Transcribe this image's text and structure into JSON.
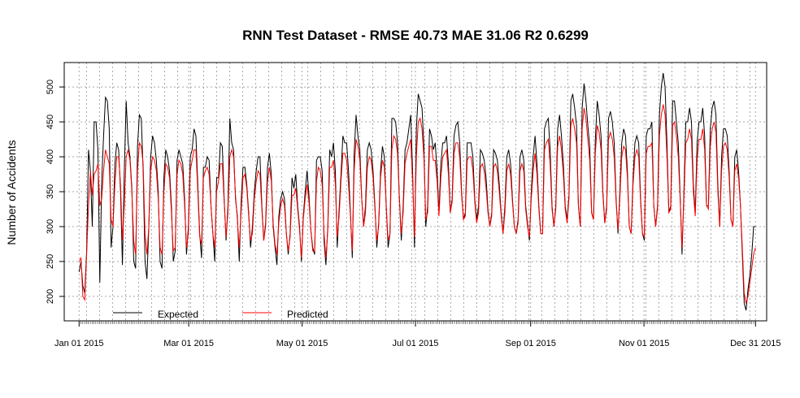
{
  "chart_data": {
    "type": "line",
    "title": "RNN Test Dataset - RMSE 40.73 MAE 31.06 R2 0.6299",
    "xlabel": "",
    "ylabel": "Number of Accidents",
    "x_start": "2015-01-01",
    "x_end": "2015-12-31",
    "xlim": [
      "2014-12-24",
      "2016-01-06"
    ],
    "ylim": [
      165,
      535
    ],
    "yticks": [
      200,
      250,
      300,
      350,
      400,
      450,
      500
    ],
    "xticks": [
      {
        "date": "2015-01-01",
        "label": "Jan 01 2015"
      },
      {
        "date": "2015-03-01",
        "label": "Mar 01 2015"
      },
      {
        "date": "2015-05-01",
        "label": "May 01 2015"
      },
      {
        "date": "2015-07-01",
        "label": "Jul 01 2015"
      },
      {
        "date": "2015-09-01",
        "label": "Sep 01 2015"
      },
      {
        "date": "2015-11-01",
        "label": "Nov 01 2015"
      },
      {
        "date": "2015-12-31",
        "label": "Dec 31 2015"
      }
    ],
    "grid": true,
    "legend_position": "bottom-left",
    "series": [
      {
        "name": "Expected",
        "color": "#000000",
        "values": [
          235,
          250,
          215,
          205,
          265,
          410,
          380,
          300,
          450,
          450,
          410,
          220,
          365,
          430,
          485,
          480,
          440,
          270,
          300,
          390,
          420,
          410,
          350,
          245,
          380,
          480,
          420,
          400,
          355,
          250,
          240,
          415,
          460,
          455,
          380,
          250,
          225,
          300,
          400,
          430,
          420,
          395,
          350,
          250,
          240,
          370,
          410,
          400,
          380,
          330,
          250,
          265,
          395,
          410,
          400,
          390,
          340,
          260,
          300,
          400,
          410,
          440,
          430,
          360,
          290,
          255,
          385,
          385,
          400,
          395,
          330,
          290,
          250,
          370,
          370,
          420,
          415,
          340,
          280,
          330,
          455,
          420,
          410,
          340,
          315,
          250,
          335,
          385,
          385,
          360,
          320,
          270,
          300,
          350,
          380,
          400,
          400,
          330,
          280,
          305,
          385,
          405,
          375,
          300,
          270,
          245,
          315,
          340,
          350,
          340,
          290,
          260,
          290,
          370,
          355,
          375,
          330,
          300,
          250,
          315,
          350,
          380,
          345,
          295,
          270,
          260,
          395,
          400,
          400,
          380,
          280,
          245,
          300,
          410,
          400,
          420,
          380,
          270,
          325,
          375,
          430,
          420,
          420,
          380,
          320,
          255,
          405,
          460,
          430,
          410,
          340,
          300,
          330,
          410,
          420,
          410,
          380,
          330,
          270,
          305,
          380,
          415,
          400,
          330,
          270,
          290,
          455,
          455,
          450,
          420,
          340,
          280,
          330,
          410,
          420,
          440,
          460,
          380,
          270,
          440,
          490,
          480,
          470,
          415,
          300,
          330,
          440,
          430,
          410,
          420,
          380,
          320,
          390,
          420,
          420,
          430,
          390,
          320,
          340,
          430,
          445,
          450,
          420,
          350,
          310,
          320,
          420,
          420,
          420,
          400,
          340,
          310,
          330,
          410,
          405,
          395,
          370,
          325,
          300,
          320,
          410,
          405,
          395,
          360,
          320,
          290,
          330,
          400,
          410,
          390,
          340,
          300,
          290,
          310,
          400,
          410,
          395,
          330,
          305,
          280,
          350,
          400,
          430,
          390,
          330,
          290,
          290,
          440,
          450,
          455,
          410,
          330,
          300,
          330,
          440,
          460,
          430,
          390,
          330,
          310,
          345,
          480,
          490,
          470,
          445,
          330,
          300,
          470,
          505,
          480,
          445,
          415,
          320,
          310,
          425,
          480,
          460,
          430,
          350,
          305,
          330,
          455,
          465,
          450,
          420,
          340,
          290,
          350,
          420,
          440,
          430,
          380,
          300,
          290,
          370,
          420,
          430,
          420,
          340,
          290,
          280,
          430,
          440,
          440,
          450,
          330,
          300,
          330,
          460,
          500,
          520,
          500,
          420,
          320,
          330,
          480,
          480,
          450,
          420,
          345,
          260,
          350,
          450,
          450,
          470,
          450,
          360,
          320,
          420,
          450,
          450,
          470,
          430,
          330,
          330,
          440,
          470,
          480,
          460,
          360,
          300,
          400,
          440,
          440,
          430,
          380,
          310,
          300,
          400,
          410,
          380,
          330,
          260,
          190,
          180,
          210,
          230,
          260,
          300,
          300
        ]
      },
      {
        "name": "Predicted",
        "color": "#ff0000",
        "values": [
          250,
          255,
          200,
          195,
          260,
          330,
          380,
          345,
          375,
          380,
          390,
          330,
          340,
          380,
          410,
          400,
          390,
          310,
          300,
          360,
          400,
          400,
          360,
          280,
          330,
          400,
          410,
          395,
          350,
          280,
          260,
          380,
          420,
          415,
          390,
          290,
          260,
          300,
          380,
          400,
          395,
          380,
          340,
          270,
          260,
          350,
          390,
          385,
          370,
          320,
          265,
          270,
          375,
          395,
          390,
          375,
          330,
          270,
          290,
          380,
          395,
          410,
          410,
          350,
          285,
          275,
          370,
          380,
          385,
          375,
          330,
          290,
          270,
          350,
          365,
          390,
          390,
          335,
          285,
          320,
          400,
          410,
          400,
          345,
          310,
          270,
          320,
          370,
          375,
          355,
          315,
          280,
          290,
          340,
          365,
          380,
          375,
          325,
          280,
          300,
          365,
          385,
          365,
          305,
          275,
          260,
          305,
          330,
          340,
          330,
          290,
          265,
          285,
          345,
          345,
          355,
          325,
          295,
          255,
          310,
          340,
          360,
          335,
          295,
          265,
          265,
          365,
          385,
          380,
          360,
          290,
          255,
          295,
          385,
          385,
          395,
          360,
          285,
          315,
          365,
          405,
          405,
          395,
          360,
          315,
          265,
          380,
          425,
          415,
          395,
          340,
          300,
          320,
          385,
          400,
          395,
          370,
          325,
          280,
          300,
          370,
          395,
          385,
          330,
          280,
          290,
          410,
          430,
          425,
          405,
          340,
          290,
          320,
          390,
          405,
          415,
          425,
          365,
          285,
          400,
          450,
          455,
          440,
          400,
          310,
          320,
          415,
          415,
          395,
          395,
          365,
          315,
          370,
          400,
          405,
          410,
          375,
          320,
          335,
          405,
          420,
          420,
          400,
          345,
          310,
          315,
          395,
          400,
          400,
          380,
          335,
          305,
          320,
          385,
          390,
          380,
          355,
          320,
          300,
          315,
          385,
          390,
          380,
          350,
          315,
          290,
          320,
          380,
          390,
          375,
          335,
          300,
          290,
          305,
          380,
          390,
          380,
          325,
          300,
          285,
          340,
          380,
          405,
          375,
          325,
          290,
          290,
          410,
          420,
          425,
          390,
          325,
          300,
          325,
          415,
          430,
          410,
          375,
          325,
          305,
          340,
          445,
          455,
          440,
          420,
          330,
          300,
          440,
          470,
          455,
          425,
          395,
          320,
          310,
          405,
          445,
          435,
          410,
          345,
          305,
          325,
          425,
          435,
          425,
          400,
          335,
          295,
          340,
          400,
          415,
          410,
          370,
          300,
          290,
          360,
          400,
          410,
          400,
          335,
          290,
          285,
          405,
          415,
          415,
          420,
          330,
          300,
          325,
          430,
          460,
          475,
          460,
          400,
          320,
          325,
          445,
          450,
          430,
          400,
          340,
          270,
          340,
          420,
          425,
          440,
          425,
          350,
          315,
          395,
          425,
          425,
          440,
          410,
          330,
          325,
          415,
          440,
          450,
          435,
          350,
          300,
          380,
          415,
          420,
          410,
          370,
          310,
          300,
          380,
          390,
          370,
          330,
          270,
          205,
          190,
          200,
          220,
          240,
          260,
          270
        ]
      }
    ]
  }
}
